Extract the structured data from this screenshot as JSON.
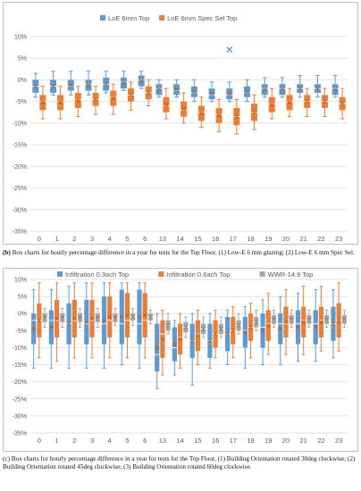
{
  "chart_data": [
    {
      "type": "box",
      "title": "",
      "xlabel": "",
      "ylabel": "",
      "categories": [
        "0",
        "1",
        "2",
        "3",
        "4",
        "5",
        "6",
        "13",
        "14",
        "15",
        "16",
        "17",
        "18",
        "19",
        "20",
        "21",
        "22",
        "23"
      ],
      "y_ticks": [
        "10%",
        "5%",
        "0%",
        "-5%",
        "-10%",
        "-15%",
        "-20%",
        "-25%",
        "-30%",
        "-35%"
      ],
      "ylim": [
        -35,
        10
      ],
      "grid": true,
      "legend_position": "top",
      "series": [
        {
          "name": "LoE 6mm Top",
          "color": "#5b9bd5",
          "boxes": [
            {
              "whisker_low": -4,
              "q1": -3,
              "median": -1.5,
              "q3": 0,
              "whisker_high": 1.5
            },
            {
              "whisker_low": -3.5,
              "q1": -3,
              "median": -1.5,
              "q3": 0,
              "whisker_high": 2
            },
            {
              "whisker_low": -3.5,
              "q1": -2.5,
              "median": -1.5,
              "q3": 0,
              "whisker_high": 2
            },
            {
              "whisker_low": -3.5,
              "q1": -2.5,
              "median": -1,
              "q3": 0,
              "whisker_high": 2
            },
            {
              "whisker_low": -3,
              "q1": -2.5,
              "median": -1,
              "q3": 0.5,
              "whisker_high": 2
            },
            {
              "whisker_low": -2.5,
              "q1": -2,
              "median": -0.5,
              "q3": 0.5,
              "whisker_high": 2
            },
            {
              "whisker_low": -2,
              "q1": -1.5,
              "median": 0,
              "q3": 1,
              "whisker_high": 2
            },
            {
              "whisker_low": -4,
              "q1": -3.5,
              "median": -2,
              "q3": -1,
              "whisker_high": 0
            },
            {
              "whisker_low": -4,
              "q1": -3.5,
              "median": -2.5,
              "q3": -1,
              "whisker_high": 0
            },
            {
              "whisker_low": -5,
              "q1": -4,
              "median": -3,
              "q3": -1.5,
              "whisker_high": 0
            },
            {
              "whisker_low": -5,
              "q1": -4.5,
              "median": -3.5,
              "q3": -2,
              "whisker_high": -0.5
            },
            {
              "whisker_low": -5,
              "q1": -4.5,
              "median": -3.5,
              "q3": -2,
              "whisker_high": -0.5,
              "outlier": 7
            },
            {
              "whisker_low": -5,
              "q1": -4,
              "median": -3,
              "q3": -1.5,
              "whisker_high": 0
            },
            {
              "whisker_low": -4,
              "q1": -3.5,
              "median": -2,
              "q3": -1,
              "whisker_high": 0.5
            },
            {
              "whisker_low": -4,
              "q1": -3.5,
              "median": -2,
              "q3": -1,
              "whisker_high": 0.5
            },
            {
              "whisker_low": -4,
              "q1": -3,
              "median": -2,
              "q3": -1,
              "whisker_high": 1
            },
            {
              "whisker_low": -4,
              "q1": -3,
              "median": -2,
              "q3": -1,
              "whisker_high": 1
            },
            {
              "whisker_low": -4,
              "q1": -3.5,
              "median": -2,
              "q3": -1,
              "whisker_high": 1
            }
          ]
        },
        {
          "name": "LoE 6mm Spec Sel Top",
          "color": "#ed7d31",
          "boxes": [
            {
              "whisker_low": -9,
              "q1": -7,
              "median": -5,
              "q3": -3.5,
              "whisker_high": -1.5
            },
            {
              "whisker_low": -9,
              "q1": -7,
              "median": -5,
              "q3": -3.5,
              "whisker_high": -1.5
            },
            {
              "whisker_low": -8.5,
              "q1": -6.5,
              "median": -4.5,
              "q3": -3,
              "whisker_high": -1.5
            },
            {
              "whisker_low": -8,
              "q1": -6,
              "median": -4.5,
              "q3": -3,
              "whisker_high": -1.5
            },
            {
              "whisker_low": -8,
              "q1": -6,
              "median": -4,
              "q3": -2.5,
              "whisker_high": -1
            },
            {
              "whisker_low": -7,
              "q1": -5,
              "median": -3.5,
              "q3": -2,
              "whisker_high": -0.5
            },
            {
              "whisker_low": -6,
              "q1": -4.5,
              "median": -3,
              "q3": -1.5,
              "whisker_high": 0
            },
            {
              "whisker_low": -9,
              "q1": -7.5,
              "median": -6,
              "q3": -4,
              "whisker_high": -2
            },
            {
              "whisker_low": -10,
              "q1": -8.5,
              "median": -7,
              "q3": -5,
              "whisker_high": -3
            },
            {
              "whisker_low": -11,
              "q1": -9.5,
              "median": -7.5,
              "q3": -6,
              "whisker_high": -4
            },
            {
              "whisker_low": -12,
              "q1": -10,
              "median": -8,
              "q3": -6.5,
              "whisker_high": -4.5
            },
            {
              "whisker_low": -12.5,
              "q1": -10.5,
              "median": -8.5,
              "q3": -6.5,
              "whisker_high": -4.5
            },
            {
              "whisker_low": -11.5,
              "q1": -9.5,
              "median": -7.5,
              "q3": -5.5,
              "whisker_high": -3.5
            },
            {
              "whisker_low": -9,
              "q1": -7.5,
              "median": -5.5,
              "q3": -4,
              "whisker_high": -2
            },
            {
              "whisker_low": -8.5,
              "q1": -7,
              "median": -5,
              "q3": -3.5,
              "whisker_high": -2
            },
            {
              "whisker_low": -8.5,
              "q1": -6.5,
              "median": -5,
              "q3": -3.5,
              "whisker_high": -2
            },
            {
              "whisker_low": -8.5,
              "q1": -6.5,
              "median": -5,
              "q3": -3.5,
              "whisker_high": -2
            },
            {
              "whisker_low": -9,
              "q1": -7,
              "median": -5.5,
              "q3": -4,
              "whisker_high": -2
            }
          ]
        }
      ]
    },
    {
      "type": "box",
      "title": "",
      "xlabel": "",
      "ylabel": "",
      "categories": [
        "0",
        "1",
        "2",
        "3",
        "4",
        "5",
        "6",
        "13",
        "14",
        "15",
        "16",
        "17",
        "18",
        "19",
        "20",
        "21",
        "22",
        "23"
      ],
      "y_ticks": [
        "10%",
        "5%",
        "0%",
        "-5%",
        "-10%",
        "-15%",
        "-20%",
        "-25%",
        "-30%",
        "-35%"
      ],
      "ylim": [
        -35,
        10
      ],
      "grid": true,
      "legend_position": "top",
      "series": [
        {
          "name": "Infiltration 0.3ach Top",
          "color": "#5b9bd5",
          "boxes": [
            {
              "whisker_low": -16,
              "q1": -9,
              "median": -2,
              "q3": 0,
              "whisker_high": 7
            },
            {
              "whisker_low": -16,
              "q1": -9,
              "median": -2,
              "q3": 1,
              "whisker_high": 7
            },
            {
              "whisker_low": -16,
              "q1": -9,
              "median": -3,
              "q3": 3,
              "whisker_high": 8
            },
            {
              "whisker_low": -16,
              "q1": -9,
              "median": -3,
              "q3": 4,
              "whisker_high": 9
            },
            {
              "whisker_low": -16,
              "q1": -9,
              "median": -3,
              "q3": 5,
              "whisker_high": 9
            },
            {
              "whisker_low": -15,
              "q1": -9,
              "median": -3,
              "q3": 7,
              "whisker_high": 9
            },
            {
              "whisker_low": -16,
              "q1": -9,
              "median": -3,
              "q3": 7,
              "whisker_high": 9
            },
            {
              "whisker_low": -22,
              "q1": -17,
              "median": -12,
              "q3": -3,
              "whisker_high": 0
            },
            {
              "whisker_low": -18,
              "q1": -14,
              "median": -10,
              "q3": -4,
              "whisker_high": -2
            },
            {
              "whisker_low": -21,
              "q1": -13,
              "median": -8,
              "q3": -3,
              "whisker_high": 0
            },
            {
              "whisker_low": -16,
              "q1": -13,
              "median": -8,
              "q3": -3,
              "whisker_high": 0
            },
            {
              "whisker_low": -15,
              "q1": -11,
              "median": -6,
              "q3": -1,
              "whisker_high": 1
            },
            {
              "whisker_low": -16,
              "q1": -10,
              "median": -5,
              "q3": -1,
              "whisker_high": 2
            },
            {
              "whisker_low": -15,
              "q1": -10,
              "median": -4,
              "q3": 0,
              "whisker_high": 4
            },
            {
              "whisker_low": -15,
              "q1": -9,
              "median": -3,
              "q3": 0,
              "whisker_high": 5
            },
            {
              "whisker_low": -14,
              "q1": -9,
              "median": -3,
              "q3": 1,
              "whisker_high": 6
            },
            {
              "whisker_low": -14,
              "q1": -9,
              "median": -3,
              "q3": 1,
              "whisker_high": 7
            },
            {
              "whisker_low": -13,
              "q1": -8,
              "median": -3,
              "q3": 2,
              "whisker_high": 7
            }
          ]
        },
        {
          "name": "Infiltration 0.6ach Top",
          "color": "#ed7d31",
          "boxes": [
            {
              "whisker_low": -13,
              "q1": -7,
              "median": -2,
              "q3": 3,
              "whisker_high": 9
            },
            {
              "whisker_low": -14,
              "q1": -7,
              "median": -2,
              "q3": 4,
              "whisker_high": 9
            },
            {
              "whisker_low": -13,
              "q1": -7,
              "median": -2,
              "q3": 4,
              "whisker_high": 9
            },
            {
              "whisker_low": -13,
              "q1": -7,
              "median": -2,
              "q3": 4,
              "whisker_high": 9
            },
            {
              "whisker_low": -13,
              "q1": -7,
              "median": -2,
              "q3": 5,
              "whisker_high": 9
            },
            {
              "whisker_low": -13,
              "q1": -7,
              "median": -2,
              "q3": 6,
              "whisker_high": 9
            },
            {
              "whisker_low": -13,
              "q1": -7,
              "median": -2,
              "q3": 6,
              "whisker_high": 9
            },
            {
              "whisker_low": -18,
              "q1": -13,
              "median": -6,
              "q3": -2,
              "whisker_high": 1
            },
            {
              "whisker_low": -16,
              "q1": -12,
              "median": -7,
              "q3": -3,
              "whisker_high": 0
            },
            {
              "whisker_low": -15,
              "q1": -11,
              "median": -6,
              "q3": -2,
              "whisker_high": 1
            },
            {
              "whisker_low": -13,
              "q1": -10,
              "median": -6,
              "q3": -2,
              "whisker_high": 1
            },
            {
              "whisker_low": -13,
              "q1": -9,
              "median": -5,
              "q3": -1,
              "whisker_high": 2
            },
            {
              "whisker_low": -13,
              "q1": -8,
              "median": -4,
              "q3": 0,
              "whisker_high": 3
            },
            {
              "whisker_low": -12,
              "q1": -8,
              "median": -3,
              "q3": 1,
              "whisker_high": 6
            },
            {
              "whisker_low": -12,
              "q1": -7,
              "median": -3,
              "q3": 2,
              "whisker_high": 7
            },
            {
              "whisker_low": -12,
              "q1": -7,
              "median": -2,
              "q3": 2,
              "whisker_high": 8
            },
            {
              "whisker_low": -11,
              "q1": -7,
              "median": -2,
              "q3": 2,
              "whisker_high": 8
            },
            {
              "whisker_low": -11,
              "q1": -7,
              "median": -2,
              "q3": 3,
              "whisker_high": 9
            }
          ]
        },
        {
          "name": "WWR-14.9 Top",
          "color": "#a5a5a5",
          "boxes": [
            {
              "whisker_low": -4,
              "q1": -2.5,
              "median": -1.5,
              "q3": 0,
              "whisker_high": 1.5
            },
            {
              "whisker_low": -4,
              "q1": -2.5,
              "median": -1.5,
              "q3": 0,
              "whisker_high": 1.5
            },
            {
              "whisker_low": -4,
              "q1": -2.5,
              "median": -1.5,
              "q3": 0,
              "whisker_high": 1.5
            },
            {
              "whisker_low": -4,
              "q1": -2.5,
              "median": -1.5,
              "q3": 0,
              "whisker_high": 1.5
            },
            {
              "whisker_low": -3.5,
              "q1": -2.5,
              "median": -1.5,
              "q3": 0,
              "whisker_high": 1.5
            },
            {
              "whisker_low": -3.5,
              "q1": -2,
              "median": -1,
              "q3": 0,
              "whisker_high": 1.5
            },
            {
              "whisker_low": -3,
              "q1": -2,
              "median": -1,
              "q3": 0,
              "whisker_high": 1
            },
            {
              "whisker_low": -6,
              "q1": -5,
              "median": -3.5,
              "q3": -2,
              "whisker_high": 0
            },
            {
              "whisker_low": -7,
              "q1": -5.5,
              "median": -4,
              "q3": -2.5,
              "whisker_high": -1
            },
            {
              "whisker_low": -7,
              "q1": -6,
              "median": -4.5,
              "q3": -3,
              "whisker_high": -1
            },
            {
              "whisker_low": -7,
              "q1": -6,
              "median": -4.5,
              "q3": -3,
              "whisker_high": -1
            },
            {
              "whisker_low": -6,
              "q1": -5,
              "median": -3.5,
              "q3": -2,
              "whisker_high": 0
            },
            {
              "whisker_low": -5,
              "q1": -4,
              "median": -2.5,
              "q3": -1,
              "whisker_high": 1
            },
            {
              "whisker_low": -4,
              "q1": -3,
              "median": -2,
              "q3": -0.5,
              "whisker_high": 1
            },
            {
              "whisker_low": -4,
              "q1": -3,
              "median": -2,
              "q3": -0.5,
              "whisker_high": 1
            },
            {
              "whisker_low": -4,
              "q1": -3,
              "median": -2,
              "q3": -0.5,
              "whisker_high": 1
            },
            {
              "whisker_low": -4,
              "q1": -3,
              "median": -2,
              "q3": -0.5,
              "whisker_high": 1
            },
            {
              "whisker_low": -4,
              "q1": -3,
              "median": -2,
              "q3": -0.5,
              "whisker_high": 1
            }
          ]
        }
      ]
    }
  ],
  "captions": {
    "a_label": "(b)",
    "a_text": " Box charts for hourly percentage difference in a year for tests for the Top Floor, (1) Low-E 6 mm glazing; (2) Low-E 6 mm Spec Sel.",
    "b_text": "(c) Box charts for hourly percentage difference in a year for tests for the Top Floor, (1) Building Orientation rotated 30deg clockwise; (2) Building Orientation rotated 45deg clockwise; (3) Building Orientation rotated 60deg clockwise."
  }
}
